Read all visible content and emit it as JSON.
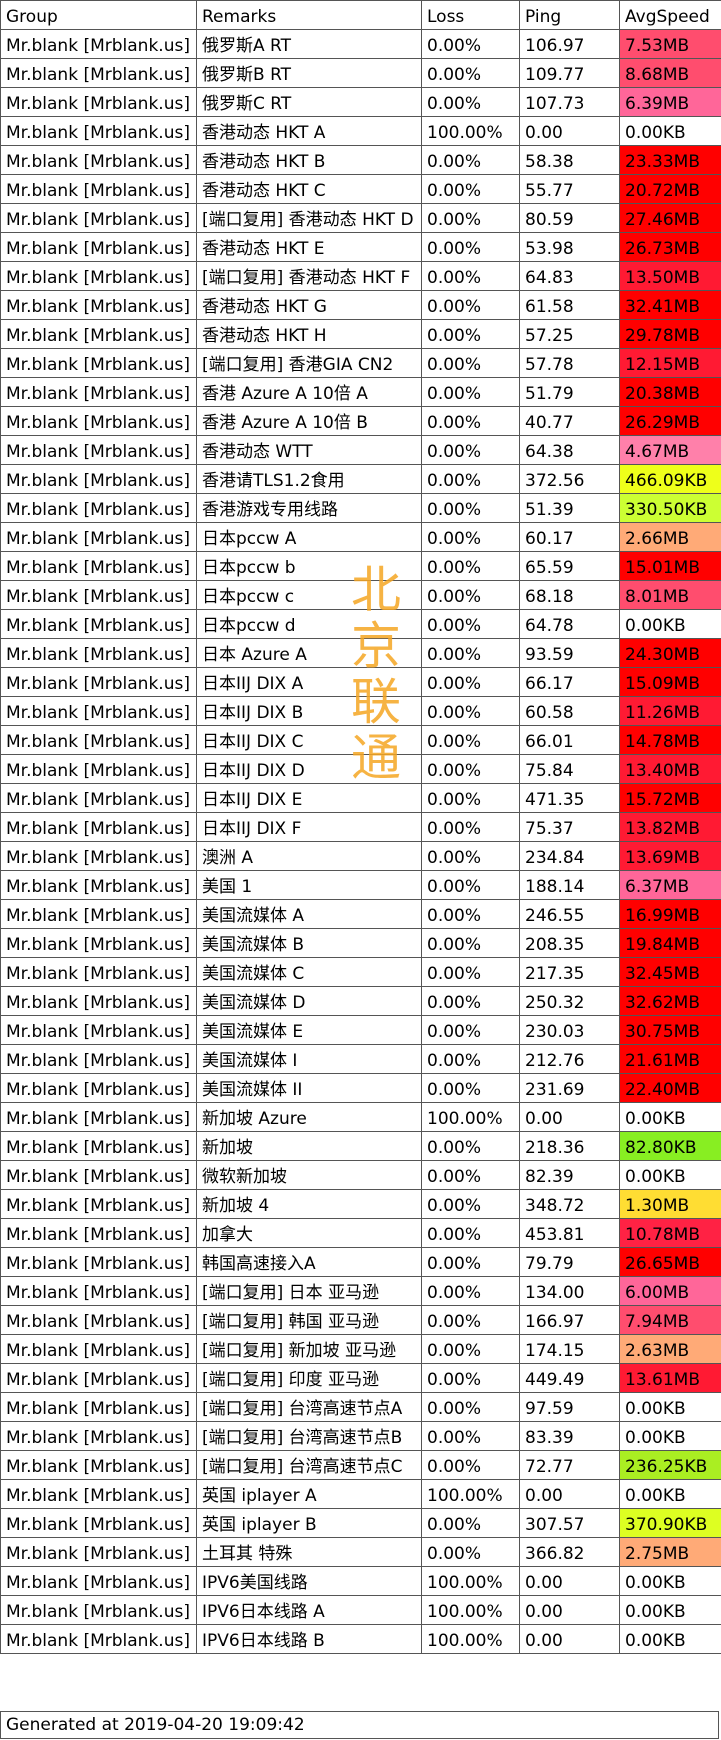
{
  "headers": [
    "Group",
    "Remarks",
    "Loss",
    "Ping",
    "AvgSpeed"
  ],
  "watermark": [
    "北",
    "京",
    "联",
    "通"
  ],
  "footer": "Generated at 2019-04-20 19:09:42",
  "rows": [
    {
      "group": "Mr.blank [Mrblank.us]",
      "remarks": "俄罗斯A RT",
      "loss": "0.00%",
      "ping": "106.97",
      "speed": "7.53MB",
      "color": "#ff4d6e"
    },
    {
      "group": "Mr.blank [Mrblank.us]",
      "remarks": "俄罗斯B RT",
      "loss": "0.00%",
      "ping": "109.77",
      "speed": "8.68MB",
      "color": "#ff4d6e"
    },
    {
      "group": "Mr.blank [Mrblank.us]",
      "remarks": "俄罗斯C RT",
      "loss": "0.00%",
      "ping": "107.73",
      "speed": "6.39MB",
      "color": "#ff6699"
    },
    {
      "group": "Mr.blank [Mrblank.us]",
      "remarks": "香港动态 HKT A",
      "loss": "100.00%",
      "ping": "0.00",
      "speed": "0.00KB",
      "color": "#ffffff"
    },
    {
      "group": "Mr.blank [Mrblank.us]",
      "remarks": "香港动态 HKT B",
      "loss": "0.00%",
      "ping": "58.38",
      "speed": "23.33MB",
      "color": "#ff0000"
    },
    {
      "group": "Mr.blank [Mrblank.us]",
      "remarks": "香港动态 HKT C",
      "loss": "0.00%",
      "ping": "55.77",
      "speed": "20.72MB",
      "color": "#ff0000"
    },
    {
      "group": "Mr.blank [Mrblank.us]",
      "remarks": "[端口复用] 香港动态 HKT D",
      "loss": "0.00%",
      "ping": "80.59",
      "speed": "27.46MB",
      "color": "#ff0000"
    },
    {
      "group": "Mr.blank [Mrblank.us]",
      "remarks": "香港动态 HKT E",
      "loss": "0.00%",
      "ping": "53.98",
      "speed": "26.73MB",
      "color": "#ff0000"
    },
    {
      "group": "Mr.blank [Mrblank.us]",
      "remarks": "[端口复用] 香港动态 HKT F",
      "loss": "0.00%",
      "ping": "64.83",
      "speed": "13.50MB",
      "color": "#ff1a33"
    },
    {
      "group": "Mr.blank [Mrblank.us]",
      "remarks": "香港动态 HKT G",
      "loss": "0.00%",
      "ping": "61.58",
      "speed": "32.41MB",
      "color": "#ff0000"
    },
    {
      "group": "Mr.blank [Mrblank.us]",
      "remarks": "香港动态 HKT H",
      "loss": "0.00%",
      "ping": "57.25",
      "speed": "29.78MB",
      "color": "#ff0000"
    },
    {
      "group": "Mr.blank [Mrblank.us]",
      "remarks": "[端口复用] 香港GIA CN2",
      "loss": "0.00%",
      "ping": "57.78",
      "speed": "12.15MB",
      "color": "#ff1a33"
    },
    {
      "group": "Mr.blank [Mrblank.us]",
      "remarks": "香港 Azure A 10倍 A",
      "loss": "0.00%",
      "ping": "51.79",
      "speed": "20.38MB",
      "color": "#ff0000"
    },
    {
      "group": "Mr.blank [Mrblank.us]",
      "remarks": "香港 Azure A 10倍 B",
      "loss": "0.00%",
      "ping": "40.77",
      "speed": "26.29MB",
      "color": "#ff0000"
    },
    {
      "group": "Mr.blank [Mrblank.us]",
      "remarks": "香港动态 WTT",
      "loss": "0.00%",
      "ping": "64.38",
      "speed": "4.67MB",
      "color": "#ff80aa"
    },
    {
      "group": "Mr.blank [Mrblank.us]",
      "remarks": "香港请TLS1.2食用",
      "loss": "0.00%",
      "ping": "372.56",
      "speed": "466.09KB",
      "color": "#eeff1a"
    },
    {
      "group": "Mr.blank [Mrblank.us]",
      "remarks": "香港游戏专用线路",
      "loss": "0.00%",
      "ping": "51.39",
      "speed": "330.50KB",
      "color": "#ccff33"
    },
    {
      "group": "Mr.blank [Mrblank.us]",
      "remarks": "日本pccw A",
      "loss": "0.00%",
      "ping": "60.17",
      "speed": "2.66MB",
      "color": "#ffaa77"
    },
    {
      "group": "Mr.blank [Mrblank.us]",
      "remarks": "日本pccw b",
      "loss": "0.00%",
      "ping": "65.59",
      "speed": "15.01MB",
      "color": "#ff0000"
    },
    {
      "group": "Mr.blank [Mrblank.us]",
      "remarks": "日本pccw c",
      "loss": "0.00%",
      "ping": "68.18",
      "speed": "8.01MB",
      "color": "#ff4d6e"
    },
    {
      "group": "Mr.blank [Mrblank.us]",
      "remarks": "日本pccw d",
      "loss": "0.00%",
      "ping": "64.78",
      "speed": "0.00KB",
      "color": "#ffffff"
    },
    {
      "group": "Mr.blank [Mrblank.us]",
      "remarks": "日本 Azure A",
      "loss": "0.00%",
      "ping": "93.59",
      "speed": "24.30MB",
      "color": "#ff0000"
    },
    {
      "group": "Mr.blank [Mrblank.us]",
      "remarks": "日本IIJ DIX A",
      "loss": "0.00%",
      "ping": "66.17",
      "speed": "15.09MB",
      "color": "#ff0000"
    },
    {
      "group": "Mr.blank [Mrblank.us]",
      "remarks": "日本IIJ DIX B",
      "loss": "0.00%",
      "ping": "60.58",
      "speed": "11.26MB",
      "color": "#ff1a33"
    },
    {
      "group": "Mr.blank [Mrblank.us]",
      "remarks": "日本IIJ DIX C",
      "loss": "0.00%",
      "ping": "66.01",
      "speed": "14.78MB",
      "color": "#ff0000"
    },
    {
      "group": "Mr.blank [Mrblank.us]",
      "remarks": "日本IIJ DIX D",
      "loss": "0.00%",
      "ping": "75.84",
      "speed": "13.40MB",
      "color": "#ff1a33"
    },
    {
      "group": "Mr.blank [Mrblank.us]",
      "remarks": "日本IIJ DIX E",
      "loss": "0.00%",
      "ping": "471.35",
      "speed": "15.72MB",
      "color": "#ff0000"
    },
    {
      "group": "Mr.blank [Mrblank.us]",
      "remarks": "日本IIJ DIX F",
      "loss": "0.00%",
      "ping": "75.37",
      "speed": "13.82MB",
      "color": "#ff1a33"
    },
    {
      "group": "Mr.blank [Mrblank.us]",
      "remarks": "澳洲 A",
      "loss": "0.00%",
      "ping": "234.84",
      "speed": "13.69MB",
      "color": "#ff1a33"
    },
    {
      "group": "Mr.blank [Mrblank.us]",
      "remarks": "美国 1",
      "loss": "0.00%",
      "ping": "188.14",
      "speed": "6.37MB",
      "color": "#ff6699"
    },
    {
      "group": "Mr.blank [Mrblank.us]",
      "remarks": "美国流媒体 A",
      "loss": "0.00%",
      "ping": "246.55",
      "speed": "16.99MB",
      "color": "#ff0000"
    },
    {
      "group": "Mr.blank [Mrblank.us]",
      "remarks": "美国流媒体 B",
      "loss": "0.00%",
      "ping": "208.35",
      "speed": "19.84MB",
      "color": "#ff0000"
    },
    {
      "group": "Mr.blank [Mrblank.us]",
      "remarks": "美国流媒体 C",
      "loss": "0.00%",
      "ping": "217.35",
      "speed": "32.45MB",
      "color": "#ff0000"
    },
    {
      "group": "Mr.blank [Mrblank.us]",
      "remarks": "美国流媒体 D",
      "loss": "0.00%",
      "ping": "250.32",
      "speed": "32.62MB",
      "color": "#ff0000"
    },
    {
      "group": "Mr.blank [Mrblank.us]",
      "remarks": "美国流媒体 E",
      "loss": "0.00%",
      "ping": "230.03",
      "speed": "30.75MB",
      "color": "#ff0000"
    },
    {
      "group": "Mr.blank [Mrblank.us]",
      "remarks": "美国流媒体 I",
      "loss": "0.00%",
      "ping": "212.76",
      "speed": "21.61MB",
      "color": "#ff0000"
    },
    {
      "group": "Mr.blank [Mrblank.us]",
      "remarks": "美国流媒体 II",
      "loss": "0.00%",
      "ping": "231.69",
      "speed": "22.40MB",
      "color": "#ff0000"
    },
    {
      "group": "Mr.blank [Mrblank.us]",
      "remarks": "新加坡 Azure",
      "loss": "100.00%",
      "ping": "0.00",
      "speed": "0.00KB",
      "color": "#ffffff"
    },
    {
      "group": "Mr.blank [Mrblank.us]",
      "remarks": "新加坡",
      "loss": "0.00%",
      "ping": "218.36",
      "speed": "82.80KB",
      "color": "#88ee22"
    },
    {
      "group": "Mr.blank [Mrblank.us]",
      "remarks": "微软新加坡",
      "loss": "0.00%",
      "ping": "82.39",
      "speed": "0.00KB",
      "color": "#ffffff"
    },
    {
      "group": "Mr.blank [Mrblank.us]",
      "remarks": "新加坡 4",
      "loss": "0.00%",
      "ping": "348.72",
      "speed": "1.30MB",
      "color": "#ffdd33"
    },
    {
      "group": "Mr.blank [Mrblank.us]",
      "remarks": "加拿大",
      "loss": "0.00%",
      "ping": "453.81",
      "speed": "10.78MB",
      "color": "#ff2244"
    },
    {
      "group": "Mr.blank [Mrblank.us]",
      "remarks": "韩国高速接入A",
      "loss": "0.00%",
      "ping": "79.79",
      "speed": "26.65MB",
      "color": "#ff0000"
    },
    {
      "group": "Mr.blank [Mrblank.us]",
      "remarks": "[端口复用] 日本 亚马逊",
      "loss": "0.00%",
      "ping": "134.00",
      "speed": "6.00MB",
      "color": "#ff6699"
    },
    {
      "group": "Mr.blank [Mrblank.us]",
      "remarks": "[端口复用] 韩国 亚马逊",
      "loss": "0.00%",
      "ping": "166.97",
      "speed": "7.94MB",
      "color": "#ff4d6e"
    },
    {
      "group": "Mr.blank [Mrblank.us]",
      "remarks": "[端口复用] 新加坡 亚马逊",
      "loss": "0.00%",
      "ping": "174.15",
      "speed": "2.63MB",
      "color": "#ffaa77"
    },
    {
      "group": "Mr.blank [Mrblank.us]",
      "remarks": "[端口复用] 印度 亚马逊",
      "loss": "0.00%",
      "ping": "449.49",
      "speed": "13.61MB",
      "color": "#ff1a33"
    },
    {
      "group": "Mr.blank [Mrblank.us]",
      "remarks": "[端口复用] 台湾高速节点A",
      "loss": "0.00%",
      "ping": "97.59",
      "speed": "0.00KB",
      "color": "#ffffff"
    },
    {
      "group": "Mr.blank [Mrblank.us]",
      "remarks": "[端口复用] 台湾高速节点B",
      "loss": "0.00%",
      "ping": "83.39",
      "speed": "0.00KB",
      "color": "#ffffff"
    },
    {
      "group": "Mr.blank [Mrblank.us]",
      "remarks": "[端口复用] 台湾高速节点C",
      "loss": "0.00%",
      "ping": "72.77",
      "speed": "236.25KB",
      "color": "#aaee22"
    },
    {
      "group": "Mr.blank [Mrblank.us]",
      "remarks": "英国 iplayer A",
      "loss": "100.00%",
      "ping": "0.00",
      "speed": "0.00KB",
      "color": "#ffffff"
    },
    {
      "group": "Mr.blank [Mrblank.us]",
      "remarks": "英国 iplayer B",
      "loss": "0.00%",
      "ping": "307.57",
      "speed": "370.90KB",
      "color": "#ddff22"
    },
    {
      "group": "Mr.blank [Mrblank.us]",
      "remarks": "土耳其 特殊",
      "loss": "0.00%",
      "ping": "366.82",
      "speed": "2.75MB",
      "color": "#ffaa77"
    },
    {
      "group": "Mr.blank [Mrblank.us]",
      "remarks": "IPV6美国线路",
      "loss": "100.00%",
      "ping": "0.00",
      "speed": "0.00KB",
      "color": "#ffffff"
    },
    {
      "group": "Mr.blank [Mrblank.us]",
      "remarks": "IPV6日本线路 A",
      "loss": "100.00%",
      "ping": "0.00",
      "speed": "0.00KB",
      "color": "#ffffff"
    },
    {
      "group": "Mr.blank [Mrblank.us]",
      "remarks": "IPV6日本线路 B",
      "loss": "100.00%",
      "ping": "0.00",
      "speed": "0.00KB",
      "color": "#ffffff"
    }
  ]
}
